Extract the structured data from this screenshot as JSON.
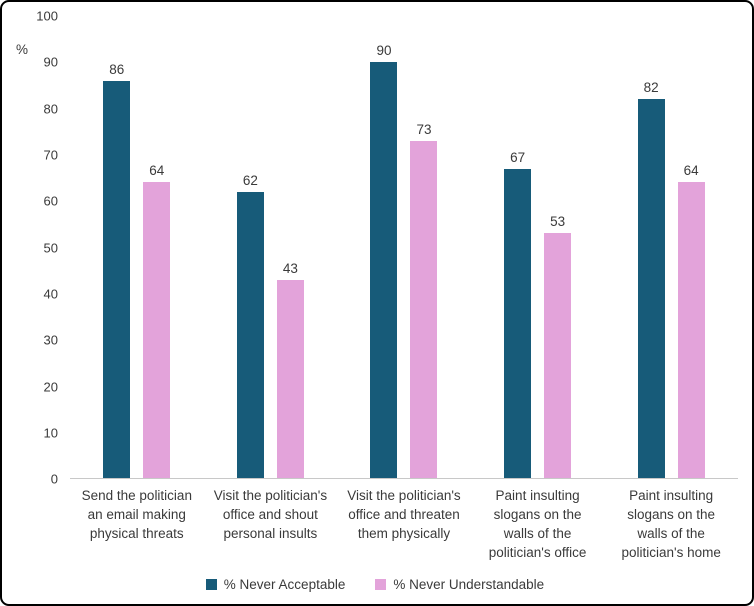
{
  "chart_data": {
    "type": "bar",
    "title": "",
    "xlabel": "",
    "ylabel": "%",
    "ylim": [
      0,
      100
    ],
    "yticks": [
      0,
      10,
      20,
      30,
      40,
      50,
      60,
      70,
      80,
      90,
      100
    ],
    "grid": false,
    "legend_position": "bottom",
    "categories": [
      "Send the politician an email making physical threats",
      "Visit the politician's office and shout personal insults",
      "Visit the politician's office and threaten them physically",
      "Paint insulting slogans on the walls of the politician's office",
      "Paint insulting slogans on the walls of the politician's home"
    ],
    "series": [
      {
        "name": "% Never Acceptable",
        "color": "#175b79",
        "values": [
          86,
          62,
          90,
          67,
          82
        ]
      },
      {
        "name": "% Never Understandable",
        "color": "#e3a3da",
        "values": [
          64,
          43,
          73,
          53,
          64
        ]
      }
    ]
  }
}
